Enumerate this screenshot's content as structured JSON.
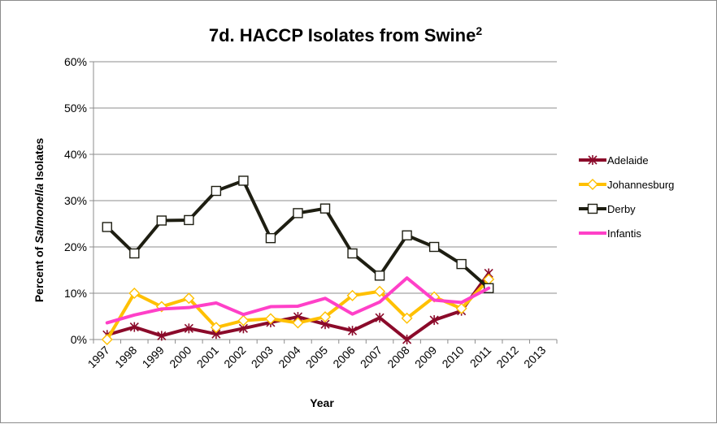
{
  "chart_data": {
    "type": "line",
    "title": "7d. HACCP Isolates from Swine",
    "title_superscript": "2",
    "xlabel": "Year",
    "ylabel_prefix": "Percent of ",
    "ylabel_italic": "Salmonella",
    "ylabel_suffix": " Isolates",
    "ylim": [
      0,
      60
    ],
    "y_ticks": [
      "0%",
      "10%",
      "20%",
      "30%",
      "40%",
      "50%",
      "60%"
    ],
    "categories": [
      "1997",
      "1998",
      "1999",
      "2000",
      "2001",
      "2002",
      "2003",
      "2004",
      "2005",
      "2006",
      "2007",
      "2008",
      "2009",
      "2010",
      "2011",
      "2012",
      "2013"
    ],
    "grid": true,
    "legend_position": "right",
    "series": [
      {
        "name": "Adelaide",
        "color": "#8b0a2a",
        "marker": "asterisk",
        "values": [
          1.0,
          2.7,
          0.8,
          2.4,
          1.2,
          2.4,
          3.7,
          4.9,
          3.3,
          1.9,
          4.7,
          0.0,
          4.2,
          6.2,
          14.3,
          null,
          null
        ]
      },
      {
        "name": "Johannesburg",
        "color": "#ffc000",
        "marker": "diamond",
        "values": [
          0.0,
          10.0,
          7.1,
          8.9,
          2.6,
          4.1,
          4.5,
          3.6,
          4.9,
          9.5,
          10.4,
          4.6,
          9.2,
          6.7,
          13.0,
          null,
          null
        ]
      },
      {
        "name": "Derby",
        "color": "#1e1e12",
        "marker": "square",
        "values": [
          24.3,
          18.6,
          25.7,
          25.8,
          32.1,
          34.3,
          21.9,
          27.3,
          28.3,
          18.6,
          13.8,
          22.5,
          20.0,
          16.3,
          11.1,
          null,
          null
        ]
      },
      {
        "name": "Infantis",
        "color": "#ff40c8",
        "marker": "none",
        "values": [
          3.6,
          5.3,
          6.6,
          6.9,
          7.9,
          5.4,
          7.1,
          7.2,
          8.9,
          5.5,
          8.1,
          13.3,
          8.5,
          8.0,
          11.1,
          null,
          null
        ]
      }
    ]
  }
}
